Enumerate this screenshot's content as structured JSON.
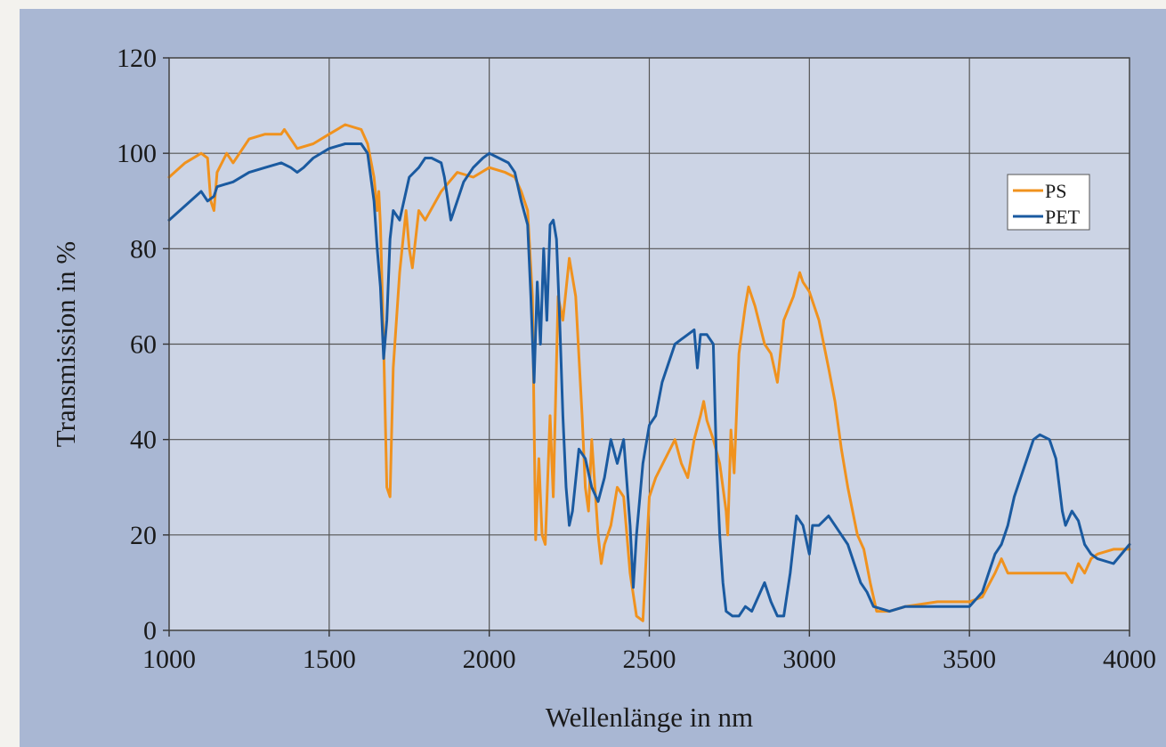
{
  "chart_data": {
    "type": "line",
    "title": "",
    "xlabel": "Wellenlänge in nm",
    "ylabel": "Transmission in %",
    "xlim": [
      1000,
      4000
    ],
    "ylim": [
      0,
      120
    ],
    "xticks": [
      1000,
      1500,
      2000,
      2500,
      3000,
      3500,
      4000
    ],
    "yticks": [
      0,
      20,
      40,
      60,
      80,
      100,
      120
    ],
    "grid": true,
    "legend_position": "right",
    "series": [
      {
        "name": "PS",
        "color": "#f0921e",
        "points": [
          [
            1000,
            95
          ],
          [
            1050,
            98
          ],
          [
            1100,
            100
          ],
          [
            1120,
            99
          ],
          [
            1130,
            90
          ],
          [
            1140,
            88
          ],
          [
            1150,
            96
          ],
          [
            1180,
            100
          ],
          [
            1200,
            98
          ],
          [
            1250,
            103
          ],
          [
            1300,
            104
          ],
          [
            1350,
            104
          ],
          [
            1360,
            105
          ],
          [
            1380,
            103
          ],
          [
            1400,
            101
          ],
          [
            1450,
            102
          ],
          [
            1500,
            104
          ],
          [
            1550,
            106
          ],
          [
            1600,
            105
          ],
          [
            1620,
            102
          ],
          [
            1640,
            95
          ],
          [
            1650,
            88
          ],
          [
            1655,
            92
          ],
          [
            1660,
            85
          ],
          [
            1670,
            60
          ],
          [
            1680,
            30
          ],
          [
            1690,
            28
          ],
          [
            1700,
            55
          ],
          [
            1720,
            75
          ],
          [
            1740,
            88
          ],
          [
            1750,
            80
          ],
          [
            1760,
            76
          ],
          [
            1780,
            88
          ],
          [
            1800,
            86
          ],
          [
            1850,
            92
          ],
          [
            1900,
            96
          ],
          [
            1950,
            95
          ],
          [
            2000,
            97
          ],
          [
            2050,
            96
          ],
          [
            2080,
            95
          ],
          [
            2100,
            92
          ],
          [
            2120,
            88
          ],
          [
            2135,
            70
          ],
          [
            2145,
            19
          ],
          [
            2155,
            36
          ],
          [
            2165,
            20
          ],
          [
            2175,
            18
          ],
          [
            2190,
            45
          ],
          [
            2200,
            28
          ],
          [
            2215,
            70
          ],
          [
            2230,
            65
          ],
          [
            2250,
            78
          ],
          [
            2270,
            70
          ],
          [
            2290,
            45
          ],
          [
            2300,
            30
          ],
          [
            2310,
            25
          ],
          [
            2320,
            40
          ],
          [
            2340,
            20
          ],
          [
            2350,
            14
          ],
          [
            2360,
            18
          ],
          [
            2380,
            22
          ],
          [
            2400,
            30
          ],
          [
            2420,
            28
          ],
          [
            2440,
            12
          ],
          [
            2460,
            3
          ],
          [
            2480,
            2
          ],
          [
            2490,
            15
          ],
          [
            2500,
            28
          ],
          [
            2520,
            32
          ],
          [
            2550,
            36
          ],
          [
            2580,
            40
          ],
          [
            2600,
            35
          ],
          [
            2620,
            32
          ],
          [
            2640,
            40
          ],
          [
            2660,
            45
          ],
          [
            2670,
            48
          ],
          [
            2680,
            44
          ],
          [
            2700,
            40
          ],
          [
            2720,
            35
          ],
          [
            2740,
            25
          ],
          [
            2745,
            20
          ],
          [
            2755,
            42
          ],
          [
            2765,
            33
          ],
          [
            2780,
            58
          ],
          [
            2800,
            68
          ],
          [
            2810,
            72
          ],
          [
            2830,
            68
          ],
          [
            2860,
            60
          ],
          [
            2880,
            58
          ],
          [
            2900,
            52
          ],
          [
            2920,
            65
          ],
          [
            2950,
            70
          ],
          [
            2970,
            75
          ],
          [
            2980,
            73
          ],
          [
            3000,
            71
          ],
          [
            3030,
            65
          ],
          [
            3060,
            55
          ],
          [
            3080,
            48
          ],
          [
            3100,
            38
          ],
          [
            3120,
            30
          ],
          [
            3150,
            20
          ],
          [
            3170,
            17
          ],
          [
            3190,
            10
          ],
          [
            3210,
            4
          ],
          [
            3250,
            4
          ],
          [
            3300,
            5
          ],
          [
            3400,
            6
          ],
          [
            3500,
            6
          ],
          [
            3540,
            7
          ],
          [
            3580,
            12
          ],
          [
            3600,
            15
          ],
          [
            3620,
            12
          ],
          [
            3650,
            12
          ],
          [
            3700,
            12
          ],
          [
            3750,
            12
          ],
          [
            3800,
            12
          ],
          [
            3820,
            10
          ],
          [
            3840,
            14
          ],
          [
            3860,
            12
          ],
          [
            3880,
            15
          ],
          [
            3900,
            16
          ],
          [
            3950,
            17
          ],
          [
            4000,
            17
          ]
        ]
      },
      {
        "name": "PET",
        "color": "#1a5aa0",
        "points": [
          [
            1000,
            86
          ],
          [
            1050,
            89
          ],
          [
            1100,
            92
          ],
          [
            1120,
            90
          ],
          [
            1140,
            91
          ],
          [
            1150,
            93
          ],
          [
            1200,
            94
          ],
          [
            1250,
            96
          ],
          [
            1300,
            97
          ],
          [
            1350,
            98
          ],
          [
            1380,
            97
          ],
          [
            1400,
            96
          ],
          [
            1420,
            97
          ],
          [
            1450,
            99
          ],
          [
            1500,
            101
          ],
          [
            1550,
            102
          ],
          [
            1600,
            102
          ],
          [
            1620,
            100
          ],
          [
            1630,
            95
          ],
          [
            1640,
            90
          ],
          [
            1650,
            80
          ],
          [
            1660,
            72
          ],
          [
            1670,
            57
          ],
          [
            1680,
            65
          ],
          [
            1690,
            82
          ],
          [
            1700,
            88
          ],
          [
            1720,
            86
          ],
          [
            1750,
            95
          ],
          [
            1780,
            97
          ],
          [
            1800,
            99
          ],
          [
            1820,
            99
          ],
          [
            1850,
            98
          ],
          [
            1860,
            95
          ],
          [
            1880,
            86
          ],
          [
            1900,
            90
          ],
          [
            1920,
            94
          ],
          [
            1950,
            97
          ],
          [
            1980,
            99
          ],
          [
            2000,
            100
          ],
          [
            2030,
            99
          ],
          [
            2060,
            98
          ],
          [
            2080,
            96
          ],
          [
            2100,
            90
          ],
          [
            2120,
            85
          ],
          [
            2130,
            70
          ],
          [
            2140,
            52
          ],
          [
            2150,
            73
          ],
          [
            2160,
            60
          ],
          [
            2170,
            80
          ],
          [
            2180,
            65
          ],
          [
            2190,
            85
          ],
          [
            2200,
            86
          ],
          [
            2210,
            82
          ],
          [
            2220,
            65
          ],
          [
            2230,
            45
          ],
          [
            2240,
            30
          ],
          [
            2250,
            22
          ],
          [
            2260,
            25
          ],
          [
            2280,
            38
          ],
          [
            2300,
            36
          ],
          [
            2320,
            30
          ],
          [
            2340,
            27
          ],
          [
            2360,
            32
          ],
          [
            2380,
            40
          ],
          [
            2400,
            35
          ],
          [
            2420,
            40
          ],
          [
            2440,
            22
          ],
          [
            2450,
            9
          ],
          [
            2460,
            20
          ],
          [
            2480,
            35
          ],
          [
            2500,
            43
          ],
          [
            2520,
            45
          ],
          [
            2540,
            52
          ],
          [
            2560,
            56
          ],
          [
            2580,
            60
          ],
          [
            2600,
            61
          ],
          [
            2620,
            62
          ],
          [
            2640,
            63
          ],
          [
            2650,
            55
          ],
          [
            2660,
            62
          ],
          [
            2680,
            62
          ],
          [
            2700,
            60
          ],
          [
            2710,
            35
          ],
          [
            2720,
            20
          ],
          [
            2730,
            10
          ],
          [
            2740,
            4
          ],
          [
            2760,
            3
          ],
          [
            2780,
            3
          ],
          [
            2800,
            5
          ],
          [
            2820,
            4
          ],
          [
            2840,
            7
          ],
          [
            2860,
            10
          ],
          [
            2880,
            6
          ],
          [
            2900,
            3
          ],
          [
            2920,
            3
          ],
          [
            2940,
            12
          ],
          [
            2960,
            24
          ],
          [
            2980,
            22
          ],
          [
            3000,
            16
          ],
          [
            3010,
            22
          ],
          [
            3030,
            22
          ],
          [
            3060,
            24
          ],
          [
            3080,
            22
          ],
          [
            3100,
            20
          ],
          [
            3120,
            18
          ],
          [
            3140,
            14
          ],
          [
            3160,
            10
          ],
          [
            3180,
            8
          ],
          [
            3200,
            5
          ],
          [
            3250,
            4
          ],
          [
            3300,
            5
          ],
          [
            3400,
            5
          ],
          [
            3500,
            5
          ],
          [
            3540,
            8
          ],
          [
            3560,
            12
          ],
          [
            3580,
            16
          ],
          [
            3600,
            18
          ],
          [
            3620,
            22
          ],
          [
            3640,
            28
          ],
          [
            3660,
            32
          ],
          [
            3680,
            36
          ],
          [
            3700,
            40
          ],
          [
            3720,
            41
          ],
          [
            3750,
            40
          ],
          [
            3770,
            36
          ],
          [
            3790,
            25
          ],
          [
            3800,
            22
          ],
          [
            3820,
            25
          ],
          [
            3840,
            23
          ],
          [
            3860,
            18
          ],
          [
            3880,
            16
          ],
          [
            3900,
            15
          ],
          [
            3950,
            14
          ],
          [
            4000,
            18
          ]
        ]
      }
    ]
  }
}
